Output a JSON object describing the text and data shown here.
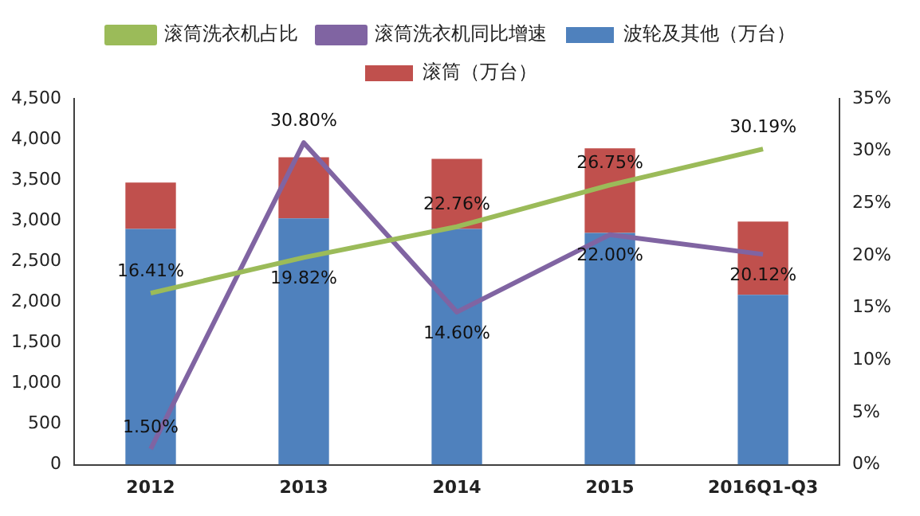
{
  "chart_data": {
    "type": "bar",
    "stacked": true,
    "categories": [
      "2012",
      "2013",
      "2014",
      "2015",
      "2016Q1-Q3"
    ],
    "series": [
      {
        "name": "波轮及其他（万台）",
        "color": "#4f81bd",
        "values": [
          2900,
          3030,
          2900,
          2850,
          2090
        ]
      },
      {
        "name": "滚筒（万台）",
        "color": "#c0504d",
        "values": [
          570,
          750,
          860,
          1040,
          900
        ]
      },
      {
        "name": "滚筒洗衣机占比",
        "type": "line",
        "axis": "y2",
        "color": "#9bbb59",
        "values": [
          16.41,
          19.82,
          22.76,
          26.75,
          30.19
        ],
        "value_labels": [
          "16.41%",
          "19.82%",
          "22.76%",
          "26.75%",
          "30.19%"
        ]
      },
      {
        "name": "滚筒洗衣机同比增速",
        "type": "line",
        "axis": "y2",
        "color": "#8064a2",
        "values": [
          1.5,
          30.8,
          14.6,
          22.0,
          20.12
        ],
        "value_labels": [
          "1.50%",
          "30.80%",
          "14.60%",
          "22.00%",
          "20.12%"
        ]
      }
    ],
    "ylim": [
      0,
      4500
    ],
    "yticks": [
      {
        "value": 0,
        "label": "0"
      },
      {
        "value": 500,
        "label": "500"
      },
      {
        "value": 1000,
        "label": "1,000"
      },
      {
        "value": 1500,
        "label": "1,500"
      },
      {
        "value": 2000,
        "label": "2,000"
      },
      {
        "value": 2500,
        "label": "2,500"
      },
      {
        "value": 3000,
        "label": "3,000"
      },
      {
        "value": 3500,
        "label": "3,500"
      },
      {
        "value": 4000,
        "label": "4,000"
      },
      {
        "value": 4500,
        "label": "4,500"
      }
    ],
    "y2lim": [
      0,
      35
    ],
    "y2ticks": [
      {
        "value": 0,
        "label": "0%"
      },
      {
        "value": 5,
        "label": "5%"
      },
      {
        "value": 10,
        "label": "10%"
      },
      {
        "value": 15,
        "label": "15%"
      },
      {
        "value": 20,
        "label": "20%"
      },
      {
        "value": 25,
        "label": "25%"
      },
      {
        "value": 30,
        "label": "30%"
      },
      {
        "value": 35,
        "label": "35%"
      }
    ],
    "grid": false,
    "legend": "top",
    "marker": "none"
  }
}
